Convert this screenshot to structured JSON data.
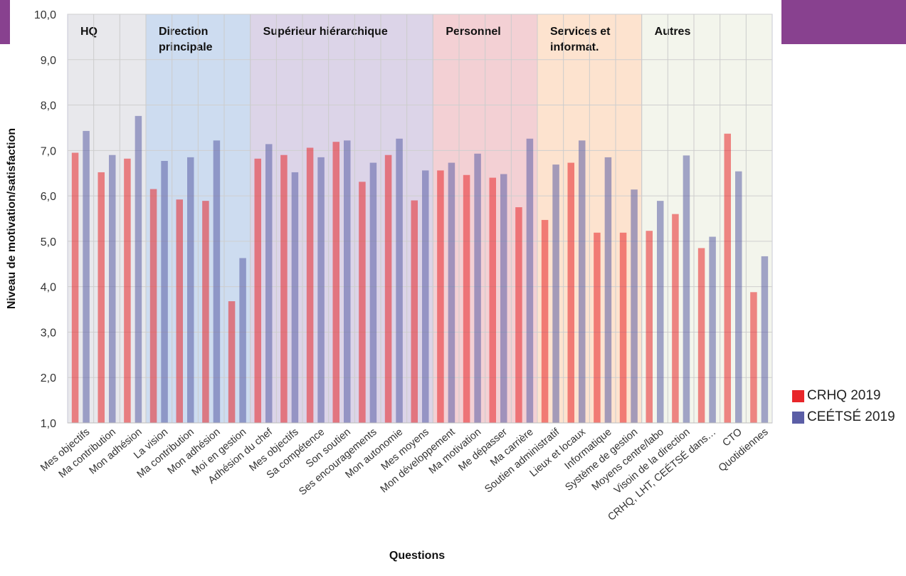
{
  "chart_data": {
    "type": "bar",
    "xlabel": "Questions",
    "ylabel": "Niveau de motivation/satisfaction",
    "ylim": [
      1,
      10
    ],
    "yticks": [
      "1,0",
      "2,0",
      "3,0",
      "4,0",
      "5,0",
      "6,0",
      "7,0",
      "8,0",
      "9,0",
      "10,0"
    ],
    "grid": true,
    "legend_position": "right",
    "categories": [
      "Mes objectifs",
      "Ma contribution",
      "Mon adhésion",
      "La vision",
      "Ma contribution",
      "Mon adhésion",
      "Moi en gestion",
      "Adhésion du chef",
      "Mes objectifs",
      "Sa compétence",
      "Son soutien",
      "Ses encouragements",
      "Mon autonomie",
      "Mes moyens",
      "Mon développement",
      "Ma motivation",
      "Me dépasser",
      "Ma carrière",
      "Soutien administratif",
      "Lieux et locaux",
      "Informatique",
      "Système de gestion",
      "Moyens centre/labo",
      "Visoin de la direction",
      "CRHQ, LHT, CEÉTSÉ dans…",
      "CTO",
      "Quotidiennes"
    ],
    "series": [
      {
        "name": "CRHQ 2019",
        "color": "#e8262a",
        "values": [
          6.95,
          6.52,
          6.82,
          6.15,
          5.92,
          5.89,
          3.68,
          6.82,
          6.9,
          7.06,
          7.19,
          6.31,
          6.9,
          5.9,
          6.56,
          6.46,
          6.4,
          5.75,
          5.47,
          6.73,
          5.19,
          5.19,
          5.23,
          5.6,
          4.85,
          7.37,
          3.88
        ]
      },
      {
        "name": "CEÉTSÉ 2019",
        "color": "#5b5ea6",
        "values": [
          7.43,
          6.9,
          7.76,
          6.77,
          6.85,
          7.22,
          4.63,
          7.14,
          6.52,
          6.85,
          7.22,
          6.73,
          7.26,
          6.56,
          6.73,
          6.93,
          6.48,
          7.26,
          6.69,
          7.22,
          6.85,
          6.14,
          5.89,
          6.89,
          5.1,
          6.54,
          4.67
        ]
      }
    ],
    "groups": [
      {
        "label": "HQ",
        "start": 0,
        "end": 2,
        "color": "#e8e8ec"
      },
      {
        "label": "Direction principale",
        "start": 3,
        "end": 6,
        "color": "#cddcf0"
      },
      {
        "label": "Supérieur hiérarchique",
        "start": 7,
        "end": 13,
        "color": "#dcd4e8"
      },
      {
        "label": "Personnel",
        "start": 14,
        "end": 17,
        "color": "#f3d0d4"
      },
      {
        "label": "Services et informat.",
        "start": 18,
        "end": 21,
        "color": "#fde3cf"
      },
      {
        "label": "Autres",
        "start": 22,
        "end": 26,
        "color": "#f3f5ec"
      }
    ]
  }
}
